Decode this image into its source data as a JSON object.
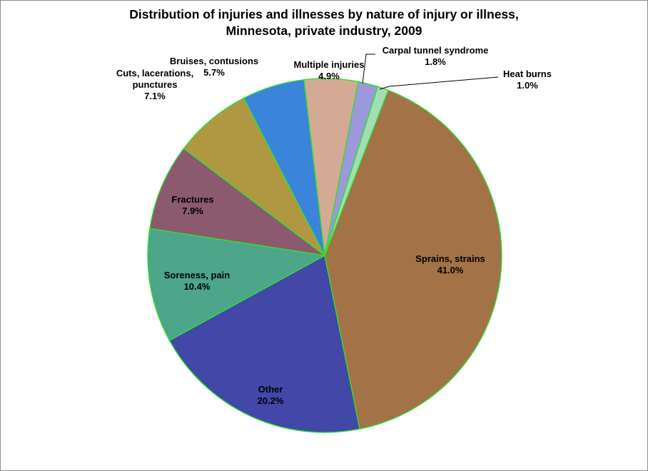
{
  "chart_data": {
    "type": "pie",
    "title_lines": [
      "Distribution of injuries and illnesses by nature of injury or illness,",
      "Minnesota, private industry, 2009"
    ],
    "slices": [
      {
        "name": "Sprains, strains",
        "label_lines": [
          "Sprains, strains"
        ],
        "pct_label": "41.0%",
        "value": 41.0,
        "color": "#A47247"
      },
      {
        "name": "Other",
        "label_lines": [
          "Other"
        ],
        "pct_label": "20.2%",
        "value": 20.2,
        "color": "#4247A8"
      },
      {
        "name": "Soreness, pain",
        "label_lines": [
          "Soreness, pain"
        ],
        "pct_label": "10.4%",
        "value": 10.4,
        "color": "#4DA58A"
      },
      {
        "name": "Fractures",
        "label_lines": [
          "Fractures"
        ],
        "pct_label": "7.9%",
        "value": 7.9,
        "color": "#8C5A6E"
      },
      {
        "name": "Cuts, lacerations, punctures",
        "label_lines": [
          "Cuts, lacerations,",
          "punctures"
        ],
        "pct_label": "7.1%",
        "value": 7.1,
        "color": "#B09843"
      },
      {
        "name": "Bruises, contusions",
        "label_lines": [
          "Bruises, contusions"
        ],
        "pct_label": "5.7%",
        "value": 5.7,
        "color": "#3A84DC"
      },
      {
        "name": "Multiple injuries",
        "label_lines": [
          "Multiple injuries"
        ],
        "pct_label": "4.9%",
        "value": 4.9,
        "color": "#D3AA93"
      },
      {
        "name": "Carpal tunnel syndrome",
        "label_lines": [
          "Carpal tunnel syndrome"
        ],
        "pct_label": "1.8%",
        "value": 1.8,
        "color": "#9B99DC"
      },
      {
        "name": "Heat burns",
        "label_lines": [
          "Heat burns"
        ],
        "pct_label": "1.0%",
        "value": 1.0,
        "color": "#A4DCB4"
      }
    ],
    "slice_border_color": "#33DD33",
    "legend": "none"
  }
}
